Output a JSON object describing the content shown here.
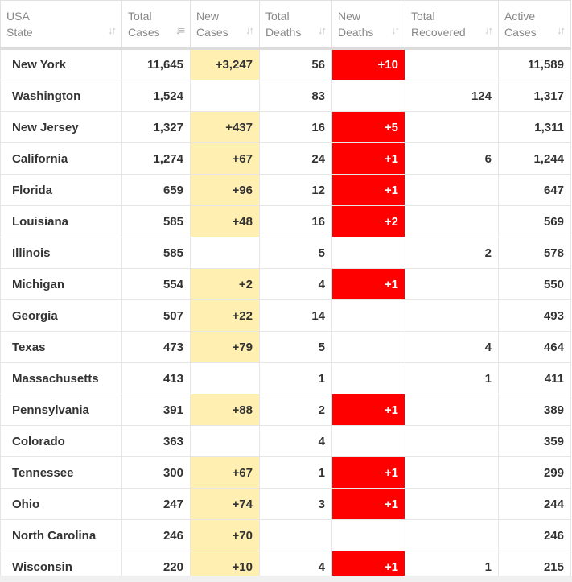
{
  "headers": [
    {
      "line1": "USA",
      "line2": "State",
      "sort_icon": "sort-arrows-icon"
    },
    {
      "line1": "Total",
      "line2": "Cases",
      "sort_icon": "sort-descending-icon"
    },
    {
      "line1": "New",
      "line2": "Cases",
      "sort_icon": "sort-arrows-icon"
    },
    {
      "line1": "Total",
      "line2": "Deaths",
      "sort_icon": "sort-arrows-icon"
    },
    {
      "line1": "New",
      "line2": "Deaths",
      "sort_icon": "sort-arrows-icon"
    },
    {
      "line1": "Total",
      "line2": "Recovered",
      "sort_icon": "sort-arrows-icon"
    },
    {
      "line1": "Active",
      "line2": "Cases",
      "sort_icon": "sort-arrows-icon"
    }
  ],
  "colors": {
    "new_cases_highlight": "#fff0b2",
    "new_deaths_highlight": "#ff0000"
  },
  "rows": [
    {
      "state": "New York",
      "total_cases": "11,645",
      "new_cases": "+3,247",
      "total_deaths": "56",
      "new_deaths": "+10",
      "total_recovered": "",
      "active_cases": "11,589"
    },
    {
      "state": "Washington",
      "total_cases": "1,524",
      "new_cases": "",
      "total_deaths": "83",
      "new_deaths": "",
      "total_recovered": "124",
      "active_cases": "1,317"
    },
    {
      "state": "New Jersey",
      "total_cases": "1,327",
      "new_cases": "+437",
      "total_deaths": "16",
      "new_deaths": "+5",
      "total_recovered": "",
      "active_cases": "1,311"
    },
    {
      "state": "California",
      "total_cases": "1,274",
      "new_cases": "+67",
      "total_deaths": "24",
      "new_deaths": "+1",
      "total_recovered": "6",
      "active_cases": "1,244"
    },
    {
      "state": "Florida",
      "total_cases": "659",
      "new_cases": "+96",
      "total_deaths": "12",
      "new_deaths": "+1",
      "total_recovered": "",
      "active_cases": "647"
    },
    {
      "state": "Louisiana",
      "total_cases": "585",
      "new_cases": "+48",
      "total_deaths": "16",
      "new_deaths": "+2",
      "total_recovered": "",
      "active_cases": "569"
    },
    {
      "state": "Illinois",
      "total_cases": "585",
      "new_cases": "",
      "total_deaths": "5",
      "new_deaths": "",
      "total_recovered": "2",
      "active_cases": "578"
    },
    {
      "state": "Michigan",
      "total_cases": "554",
      "new_cases": "+2",
      "total_deaths": "4",
      "new_deaths": "+1",
      "total_recovered": "",
      "active_cases": "550"
    },
    {
      "state": "Georgia",
      "total_cases": "507",
      "new_cases": "+22",
      "total_deaths": "14",
      "new_deaths": "",
      "total_recovered": "",
      "active_cases": "493"
    },
    {
      "state": "Texas",
      "total_cases": "473",
      "new_cases": "+79",
      "total_deaths": "5",
      "new_deaths": "",
      "total_recovered": "4",
      "active_cases": "464"
    },
    {
      "state": "Massachusetts",
      "total_cases": "413",
      "new_cases": "",
      "total_deaths": "1",
      "new_deaths": "",
      "total_recovered": "1",
      "active_cases": "411"
    },
    {
      "state": "Pennsylvania",
      "total_cases": "391",
      "new_cases": "+88",
      "total_deaths": "2",
      "new_deaths": "+1",
      "total_recovered": "",
      "active_cases": "389"
    },
    {
      "state": "Colorado",
      "total_cases": "363",
      "new_cases": "",
      "total_deaths": "4",
      "new_deaths": "",
      "total_recovered": "",
      "active_cases": "359"
    },
    {
      "state": "Tennessee",
      "total_cases": "300",
      "new_cases": "+67",
      "total_deaths": "1",
      "new_deaths": "+1",
      "total_recovered": "",
      "active_cases": "299"
    },
    {
      "state": "Ohio",
      "total_cases": "247",
      "new_cases": "+74",
      "total_deaths": "3",
      "new_deaths": "+1",
      "total_recovered": "",
      "active_cases": "244"
    },
    {
      "state": "North Carolina",
      "total_cases": "246",
      "new_cases": "+70",
      "total_deaths": "",
      "new_deaths": "",
      "total_recovered": "",
      "active_cases": "246"
    },
    {
      "state": "Wisconsin",
      "total_cases": "220",
      "new_cases": "+10",
      "total_deaths": "4",
      "new_deaths": "+1",
      "total_recovered": "1",
      "active_cases": "215"
    }
  ]
}
